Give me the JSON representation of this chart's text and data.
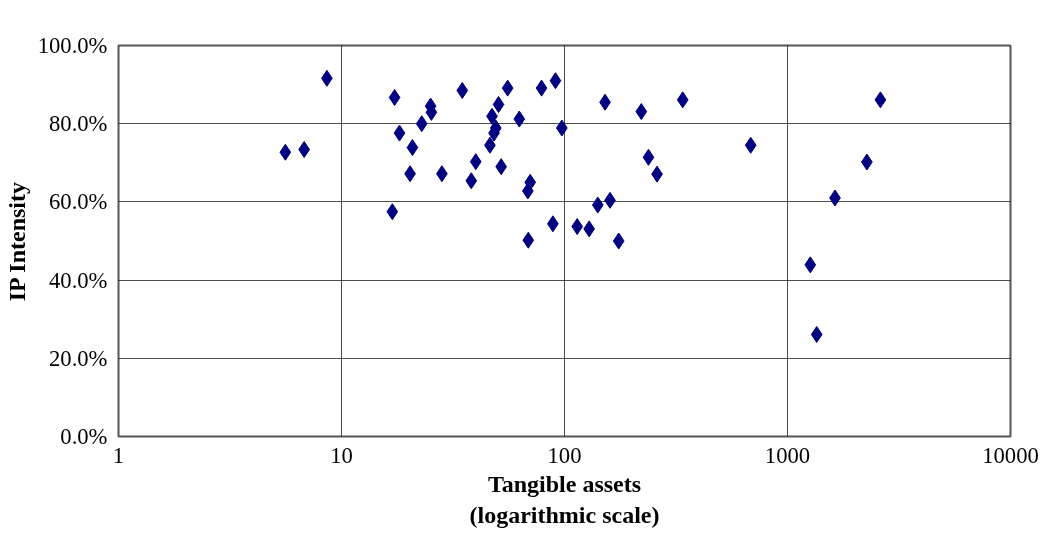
{
  "chart_data": {
    "type": "scatter",
    "xlabel": "Tangible assets\n(logarithmic scale)",
    "ylabel": "IP Intensity",
    "log": "x",
    "grid": true,
    "marker": "diamond",
    "xlim": [
      1,
      10000
    ],
    "xticks": [
      1,
      10,
      100,
      1000,
      10000
    ],
    "ylim": [
      0,
      100
    ],
    "yticks": [
      {
        "value": 0,
        "label": "0.0%"
      },
      {
        "value": 20,
        "label": "20.0%"
      },
      {
        "value": 40,
        "label": "40.0%"
      },
      {
        "value": 60,
        "label": "60.0%"
      },
      {
        "value": 80,
        "label": "80.0%"
      },
      {
        "value": 100,
        "label": "100.0%"
      }
    ],
    "series": [
      {
        "color": "#000080",
        "x": [
          8.6,
          5.6,
          6.8,
          17.3,
          18.2,
          25.1,
          25.3,
          22.9,
          20.8,
          20.3,
          28.2,
          34.8,
          55.6,
          50.6,
          47.3,
          49.2,
          48.3,
          46.3,
          40.0,
          52.0,
          38.2,
          62.7,
          78.9,
          91.1,
          97.3,
          70.2,
          68.5,
          16.9,
          88.7,
          68.8,
          152,
          221,
          339,
          2610,
          684,
          238,
          260,
          2270,
          141,
          160,
          1633,
          114,
          129,
          175,
          1265,
          1352
        ],
        "values": [
          91.6,
          72.7,
          73.4,
          86.7,
          77.6,
          84.5,
          82.9,
          80.0,
          73.9,
          67.2,
          67.2,
          88.5,
          89.1,
          84.9,
          81.9,
          78.9,
          77.6,
          74.5,
          70.3,
          69.0,
          65.4,
          81.2,
          89.1,
          91.0,
          78.9,
          65.0,
          62.8,
          57.5,
          54.4,
          50.2,
          85.5,
          83.1,
          86.1,
          86.1,
          74.5,
          71.4,
          67.1,
          70.2,
          59.2,
          60.4,
          61.0,
          53.7,
          53.1,
          50.0,
          43.9,
          26.1
        ]
      }
    ]
  }
}
